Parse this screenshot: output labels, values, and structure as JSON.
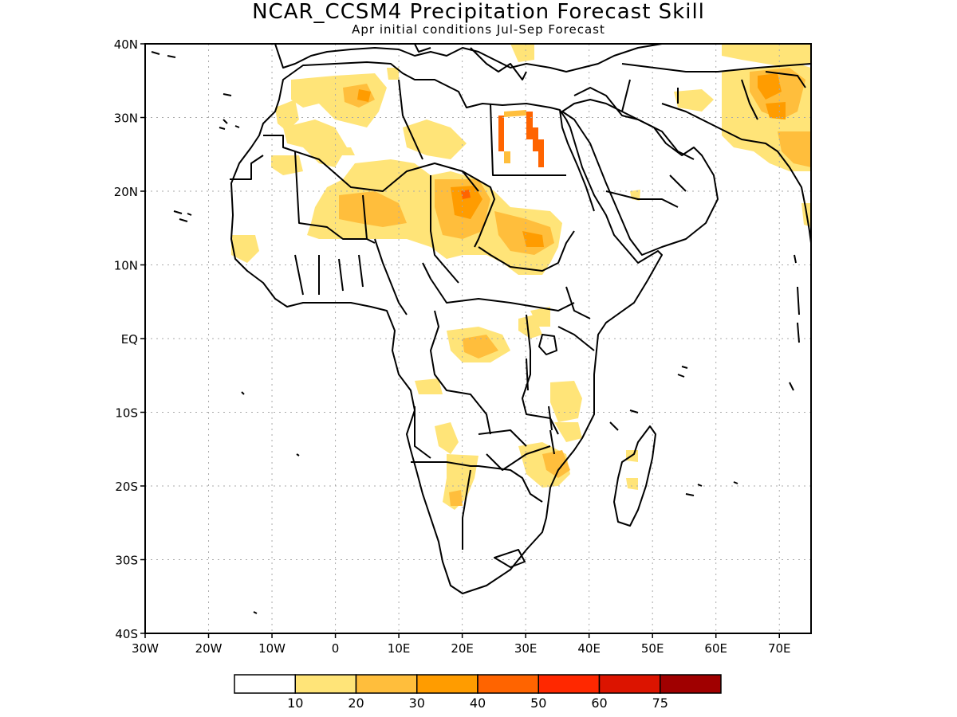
{
  "title": "NCAR_CCSM4 Precipitation Forecast Skill",
  "subtitle": "Apr initial conditions  Jul-Sep Forecast",
  "map": {
    "lon_range": [
      -30,
      75
    ],
    "lat_range": [
      -40,
      40
    ],
    "lat_ticks": [
      {
        "value": 40,
        "label": "40N"
      },
      {
        "value": 30,
        "label": "30N"
      },
      {
        "value": 20,
        "label": "20N"
      },
      {
        "value": 10,
        "label": "10N"
      },
      {
        "value": 0,
        "label": "EQ"
      },
      {
        "value": -10,
        "label": "10S"
      },
      {
        "value": -20,
        "label": "20S"
      },
      {
        "value": -30,
        "label": "30S"
      },
      {
        "value": -40,
        "label": "40S"
      }
    ],
    "lon_ticks": [
      {
        "value": -30,
        "label": "30W"
      },
      {
        "value": -20,
        "label": "20W"
      },
      {
        "value": -10,
        "label": "10W"
      },
      {
        "value": 0,
        "label": "0"
      },
      {
        "value": 10,
        "label": "10E"
      },
      {
        "value": 20,
        "label": "20E"
      },
      {
        "value": 30,
        "label": "30E"
      },
      {
        "value": 40,
        "label": "40E"
      },
      {
        "value": 50,
        "label": "50E"
      },
      {
        "value": 60,
        "label": "60E"
      },
      {
        "value": 70,
        "label": "70E"
      }
    ],
    "grid": true
  },
  "colorbar": {
    "colors": [
      "#ffffff",
      "#ffe478",
      "#ffbe3c",
      "#ff9c00",
      "#ff6400",
      "#ff2800",
      "#dc1400",
      "#a00000"
    ],
    "labels": [
      "10",
      "20",
      "30",
      "40",
      "50",
      "60",
      "75"
    ]
  }
}
